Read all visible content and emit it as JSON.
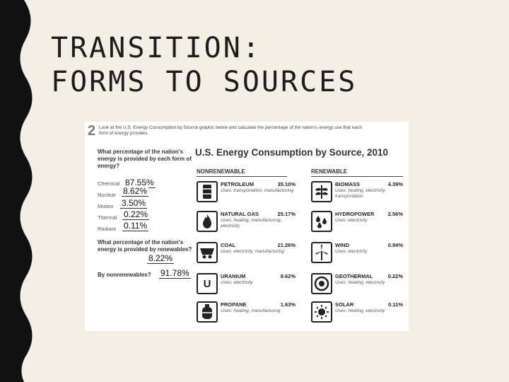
{
  "slide": {
    "title_line1": "TRANSITION:",
    "title_line2": "FORMS TO SOURCES"
  },
  "worksheet": {
    "number": "2",
    "instructions": "Look at the U.S. Energy Consumption by Source graphic below and calculate the percentage of the nation's energy use that each form of energy provides.",
    "question1": "What percentage of the nation's energy is provided by each form of energy?",
    "forms": [
      {
        "label": "Chemical",
        "answer": "87.55%"
      },
      {
        "label": "Nuclear",
        "answer": "8.62%"
      },
      {
        "label": "Motion",
        "answer": "3.50%"
      },
      {
        "label": "Thermal",
        "answer": "0.22%"
      },
      {
        "label": "Radiant",
        "answer": "0.11%"
      }
    ],
    "question2": "What percentage of the nation's energy is provided by renewables?",
    "renewables_answer": "8.22%",
    "question3": "By nonrenewables?",
    "nonrenewables_answer": "91.78%"
  },
  "consumption": {
    "title": "U.S. Energy Consumption by Source, 2010",
    "nonrenewable_header": "NONRENEWABLE",
    "renewable_header": "RENEWABLE",
    "nonrenewable": [
      {
        "name": "PETROLEUM",
        "percent": "35.10%",
        "uses": "Uses: transportation, manufacturing",
        "icon": "oil-barrel-icon"
      },
      {
        "name": "NATURAL GAS",
        "percent": "25.17%",
        "uses": "Uses: heating, manufacturing, electricity",
        "icon": "flame-icon"
      },
      {
        "name": "COAL",
        "percent": "21.26%",
        "uses": "Uses: electricity, manufacturing",
        "icon": "coal-cart-icon"
      },
      {
        "name": "URANIUM",
        "percent": "8.62%",
        "uses": "Uses: electricity",
        "icon": "uranium-icon",
        "glyph": "U"
      },
      {
        "name": "PROPANE",
        "percent": "1.63%",
        "uses": "Uses: heating, manufacturing",
        "icon": "propane-tank-icon"
      }
    ],
    "renewable": [
      {
        "name": "BIOMASS",
        "percent": "4.39%",
        "uses": "Uses: heating, electricity, transportation",
        "icon": "biomass-leaf-icon"
      },
      {
        "name": "HYDROPOWER",
        "percent": "2.56%",
        "uses": "Uses: electricity",
        "icon": "water-drops-icon"
      },
      {
        "name": "WIND",
        "percent": "0.94%",
        "uses": "Uses: electricity",
        "icon": "wind-turbine-icon"
      },
      {
        "name": "GEOTHERMAL",
        "percent": "0.22%",
        "uses": "Uses: heating, electricity",
        "icon": "geothermal-icon"
      },
      {
        "name": "SOLAR",
        "percent": "0.11%",
        "uses": "Uses: heating, electricity",
        "icon": "sun-icon"
      }
    ]
  },
  "colors": {
    "background": "#f3efe4",
    "stripe": "#111111",
    "card": "#ffffff"
  }
}
